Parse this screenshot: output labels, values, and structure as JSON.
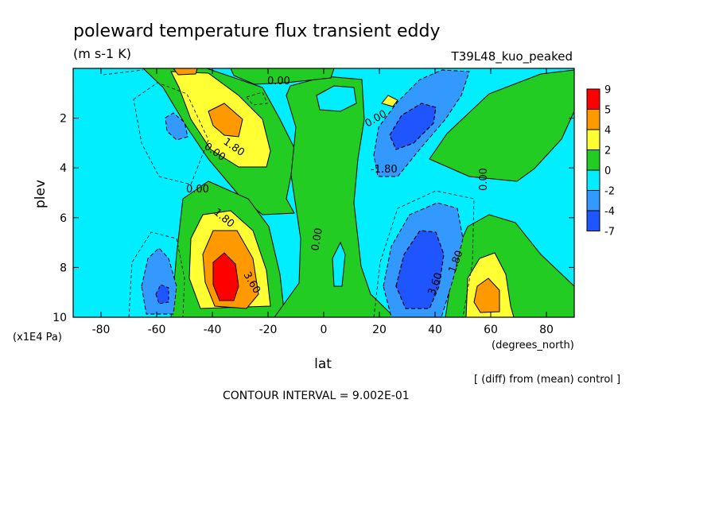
{
  "chart_data": {
    "type": "heatmap",
    "title": "poleward temperature flux transient eddy",
    "units": "(m s-1 K)",
    "experiment": "T39L48_kuo_peaked",
    "xlabel": "lat",
    "x_units": "(degrees_north)",
    "ylabel": "plev",
    "y_units": "(x1E4 Pa)",
    "xlim": [
      -90,
      90
    ],
    "ylim": [
      10,
      0
    ],
    "x_ticks": [
      "-80",
      "-60",
      "-40",
      "-20",
      "0",
      "20",
      "40",
      "60",
      "80"
    ],
    "y_ticks": [
      "2",
      "4",
      "6",
      "8",
      "10"
    ],
    "colorbar": {
      "labels": [
        "9",
        "5",
        "4",
        "2",
        "0",
        "-2",
        "-4",
        "-7"
      ],
      "colors": [
        "#ff0000",
        "#ff9900",
        "#ffff33",
        "#22cc22",
        "#00eeff",
        "#3399ff",
        "#1f55ff"
      ]
    },
    "contour_labels": [
      "0.00",
      "0.00",
      "1.80",
      "0.00",
      "1.80",
      "3.60",
      "0.00",
      "0.00",
      "-1.80",
      "0.00",
      "3.60",
      "1.80"
    ],
    "contour_interval": "CONTOUR INTERVAL = 9.002E-01",
    "comparison": "[ (diff) from (mean) control ]"
  }
}
